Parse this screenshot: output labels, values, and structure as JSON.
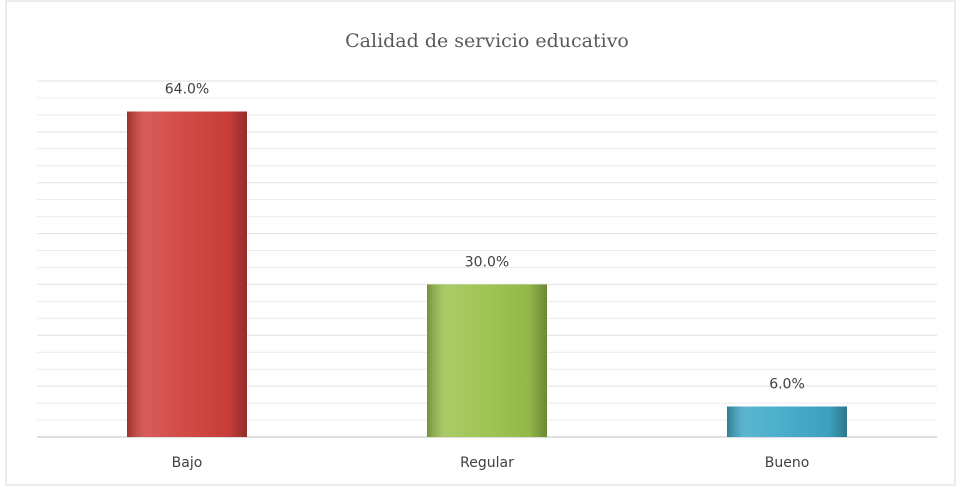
{
  "chart_data": {
    "type": "bar",
    "title": "Calidad de servicio educativo",
    "categories": [
      "Bajo",
      "Regular",
      "Bueno"
    ],
    "values": [
      64,
      30,
      6
    ],
    "value_labels": [
      "64.0%",
      "30.0%",
      "6.0%"
    ],
    "colors": [
      "#d0403c",
      "#9bc14c",
      "#3fa9c7"
    ],
    "ylim": [
      0,
      70
    ],
    "yticks": [
      0,
      10,
      20,
      30,
      40,
      50,
      60,
      70
    ],
    "grid": true
  }
}
